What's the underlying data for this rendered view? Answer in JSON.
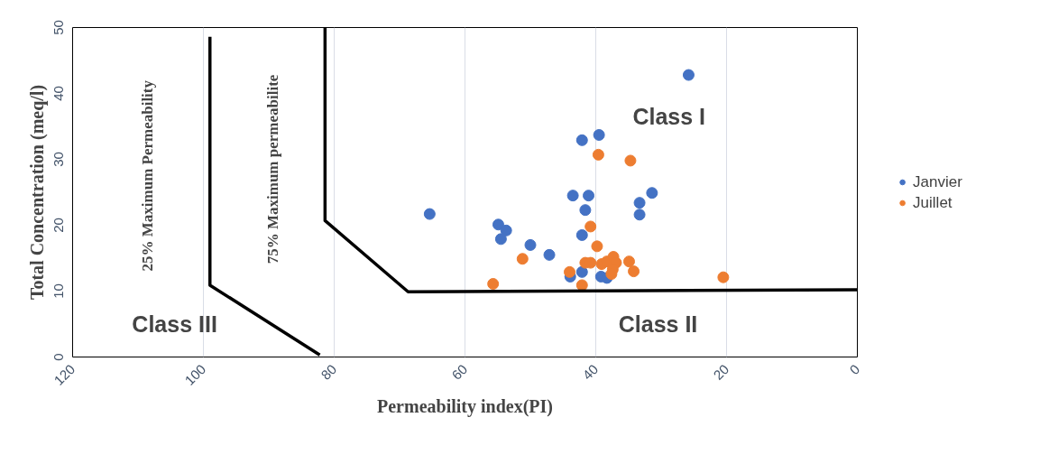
{
  "chart_data": {
    "type": "scatter",
    "xlabel": "Permeability index(PI)",
    "ylabel": "Total Concentration (meq/l)",
    "xlim": [
      120,
      0
    ],
    "ylim": [
      0,
      50
    ],
    "xticks": [
      120,
      100,
      80,
      60,
      40,
      20,
      0
    ],
    "yticks": [
      0,
      10,
      20,
      30,
      40,
      50
    ],
    "grid": "x",
    "legend": "right",
    "marker": "circle",
    "series": [
      {
        "name": "Janvier",
        "color": "#4472c4",
        "x": [
          65.4,
          54.9,
          53.7,
          54.5,
          50.0,
          47.1,
          42.1,
          39.5,
          43.5,
          41.1,
          41.6,
          42.1,
          43.9,
          42.1,
          39.2,
          38.3,
          33.3,
          33.3,
          31.4,
          25.8
        ],
        "values": [
          21.7,
          20.1,
          19.2,
          17.9,
          17.0,
          15.5,
          32.9,
          33.7,
          24.5,
          24.5,
          22.3,
          18.5,
          12.2,
          12.9,
          12.2,
          12.0,
          23.4,
          21.6,
          24.9,
          42.8
        ]
      },
      {
        "name": "Juillet",
        "color": "#ed7d31",
        "x": [
          55.7,
          51.2,
          44.0,
          42.1,
          40.8,
          39.6,
          39.8,
          41.6,
          40.8,
          39.1,
          38.3,
          37.3,
          36.9,
          37.4,
          37.6,
          34.9,
          34.2,
          34.7,
          20.5
        ],
        "values": [
          11.1,
          14.9,
          12.9,
          10.9,
          19.8,
          30.7,
          16.8,
          14.3,
          14.3,
          14.1,
          14.5,
          15.2,
          14.3,
          13.3,
          12.6,
          14.5,
          13.0,
          29.8,
          12.1
        ]
      },
      {
        "type": "line",
        "marker": "none",
        "color": "#000000",
        "x": [
          99.0,
          99.0,
          82.2
        ],
        "values": [
          48.6,
          10.9,
          0.3
        ]
      },
      {
        "type": "line",
        "marker": "none",
        "color": "#000000",
        "x": [
          81.4,
          81.4,
          68.7,
          0
        ],
        "values": [
          50,
          20.7,
          9.9,
          10.2
        ]
      }
    ],
    "annotations": [
      "Class I",
      "Class  II",
      "Class III",
      "25% Maximum Permeability",
      "75% Maximum permeabilite"
    ]
  }
}
